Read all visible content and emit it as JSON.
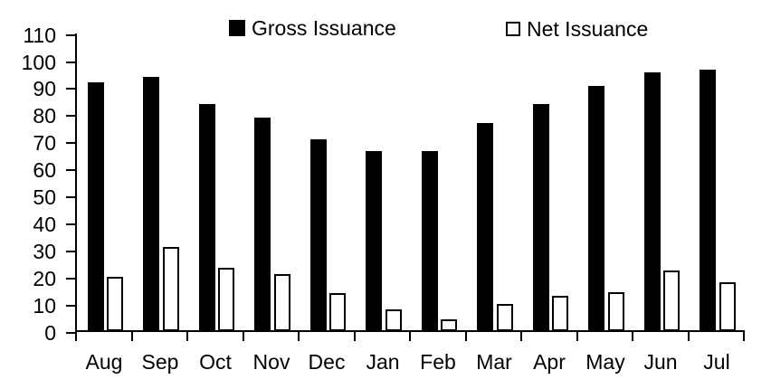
{
  "chart_data": {
    "type": "bar",
    "title": "",
    "xlabel": "",
    "ylabel": "",
    "categories": [
      "Aug",
      "Sep",
      "Oct",
      "Nov",
      "Dec",
      "Jan",
      "Feb",
      "Mar",
      "Apr",
      "May",
      "Jun",
      "Jul"
    ],
    "series": [
      {
        "name": "Gross Issuance",
        "color": "#000000",
        "outline": "#000000",
        "values": [
          92.5,
          94.5,
          84.5,
          79.5,
          71.5,
          67,
          67,
          77.5,
          84.5,
          91,
          96,
          97
        ]
      },
      {
        "name": "Net Issuance",
        "color": "#ffffff",
        "outline": "#000000",
        "values": [
          20.5,
          31.5,
          24,
          21.5,
          14.5,
          8.5,
          5,
          10.5,
          13.5,
          15,
          23,
          18.5
        ]
      }
    ],
    "ylim": [
      0,
      110
    ],
    "ytick_step": 10,
    "yticks": [
      0,
      10,
      20,
      30,
      40,
      50,
      60,
      70,
      80,
      90,
      100,
      110
    ],
    "grid": false,
    "legend_position": "top",
    "axis_color": "#000000",
    "text_color": "#000000",
    "background": "#ffffff"
  }
}
